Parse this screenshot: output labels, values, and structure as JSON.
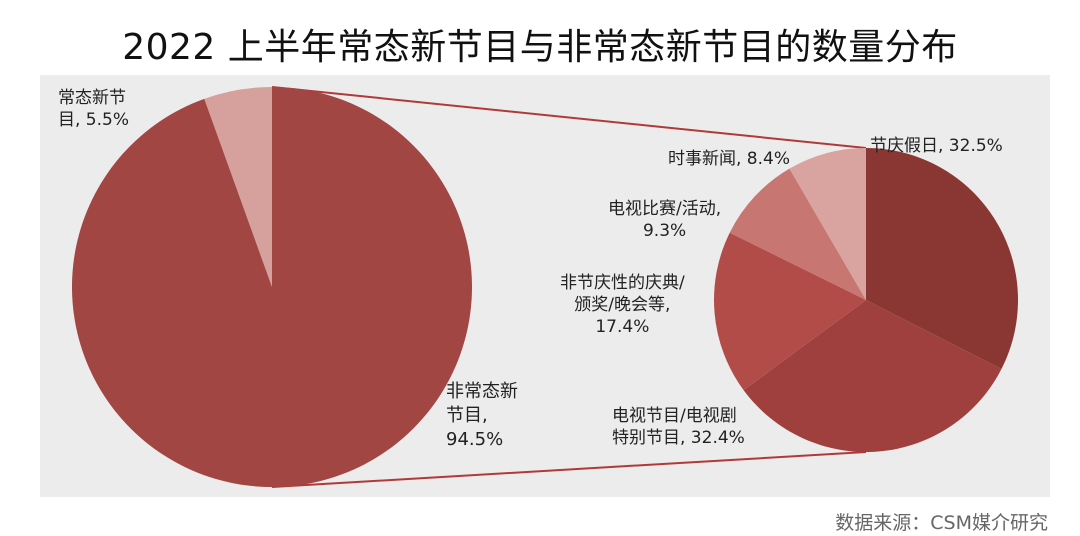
{
  "title": "2022 上半年常态新节目与非常态新节目的数量分布",
  "source": "数据来源：CSM媒介研究",
  "colors": {
    "panel": "#ececec",
    "main_dark": "#a14643",
    "main_light": "#d6a09c",
    "connector": "#b03a3a"
  },
  "chart_data": [
    {
      "type": "pie",
      "slices": [
        {
          "name": "常态新节目",
          "value": 5.5,
          "label_line1": "常态新节",
          "label_line2": "目, 5.5%",
          "color": "#d6a09c"
        },
        {
          "name": "非常态新节目",
          "value": 94.5,
          "label_line1": "非常态新",
          "label_line2": "节目,",
          "label_line3": "94.5%",
          "color": "#a14643"
        }
      ]
    },
    {
      "type": "pie",
      "slices": [
        {
          "name": "节庆假日",
          "value": 32.5,
          "label": "节庆假日, 32.5%",
          "color": "#8a3633"
        },
        {
          "name": "电视节目/电视剧特别节目",
          "value": 32.4,
          "label_line1": "电视节目/电视剧",
          "label_line2": "特别节目, 32.4%",
          "color": "#a0403e"
        },
        {
          "name": "非节庆性的庆典/颁奖/晚会等",
          "value": 17.4,
          "label_line1": "非节庆性的庆典/",
          "label_line2": "颁奖/晚会等,",
          "label_line3": "17.4%",
          "color": "#b24c48"
        },
        {
          "name": "电视比赛/活动",
          "value": 9.3,
          "label_line1": "电视比赛/活动,",
          "label_line2": "9.3%",
          "color": "#c77672"
        },
        {
          "name": "时事新闻",
          "value": 8.4,
          "label": "时事新闻, 8.4%",
          "color": "#d9a39f"
        }
      ]
    }
  ]
}
